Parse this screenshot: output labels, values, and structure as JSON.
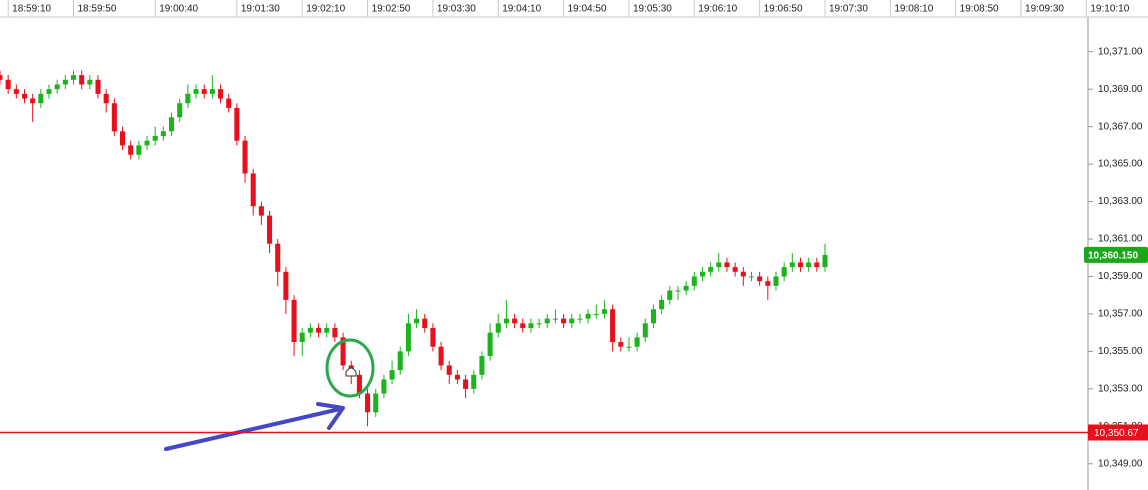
{
  "chart_data": {
    "type": "candlestick",
    "x": [
      "18:59:05",
      "18:59:10",
      "18:59:15",
      "18:59:20",
      "18:59:25",
      "18:59:30",
      "18:59:35",
      "18:59:40",
      "18:59:45",
      "18:59:50",
      "18:59:55",
      "19:00:00",
      "19:00:05",
      "19:00:10",
      "19:00:15",
      "19:00:20",
      "19:00:25",
      "19:00:30",
      "19:00:35",
      "19:00:40",
      "19:00:45",
      "19:00:50",
      "19:00:55",
      "19:01:00",
      "19:01:05",
      "19:01:10",
      "19:01:15",
      "19:01:20",
      "19:01:25",
      "19:01:30",
      "19:01:35",
      "19:01:40",
      "19:01:45",
      "19:01:50",
      "19:01:55",
      "19:02:00",
      "19:02:05",
      "19:02:10",
      "19:02:15",
      "19:02:20",
      "19:02:25",
      "19:02:30",
      "19:02:35",
      "19:02:40",
      "19:02:45",
      "19:02:50",
      "19:02:55",
      "19:03:00",
      "19:03:05",
      "19:03:10",
      "19:03:15",
      "19:03:20",
      "19:03:25",
      "19:03:30",
      "19:03:35",
      "19:03:40",
      "19:03:45",
      "19:03:50",
      "19:03:55",
      "19:04:00",
      "19:04:05",
      "19:04:10",
      "19:04:15",
      "19:04:20",
      "19:04:25",
      "19:04:30",
      "19:04:35",
      "19:04:40",
      "19:04:45",
      "19:04:50",
      "19:04:55",
      "19:05:00",
      "19:05:05",
      "19:05:10",
      "19:05:15",
      "19:05:20",
      "19:05:25",
      "19:05:30",
      "19:05:35",
      "19:05:40",
      "19:05:45",
      "19:05:50",
      "19:05:55",
      "19:06:00",
      "19:06:05",
      "19:06:10",
      "19:06:15",
      "19:06:20",
      "19:06:25",
      "19:06:30",
      "19:06:35",
      "19:06:40",
      "19:06:45",
      "19:06:50",
      "19:06:55",
      "19:07:00",
      "19:07:05",
      "19:07:10",
      "19:07:15",
      "19:07:20",
      "19:07:25",
      "19:07:30"
    ],
    "open": [
      10369.75,
      10369.5,
      10369,
      10368.75,
      10368.5,
      10368.25,
      10368.75,
      10369,
      10369.25,
      10369.5,
      10369.75,
      10369.25,
      10369.5,
      10368.75,
      10368.25,
      10366.75,
      10366,
      10365.5,
      10366,
      10366.25,
      10366.5,
      10366.75,
      10367.5,
      10368.25,
      10368.75,
      10369,
      10368.75,
      10369,
      10368.5,
      10368,
      10366.25,
      10364.5,
      10362.75,
      10362.25,
      10360.75,
      10359.25,
      10357.75,
      10355.5,
      10356,
      10356.25,
      10356,
      10356.25,
      10355.75,
      10354.25,
      10353.75,
      10352.75,
      10351.75,
      10352.75,
      10353.5,
      10354,
      10355,
      10356.5,
      10356.75,
      10356.25,
      10355.25,
      10354.25,
      10353.75,
      10353.5,
      10353,
      10353.75,
      10354.75,
      10356,
      10356.5,
      10356.75,
      10356.5,
      10356.25,
      10356.5,
      10356.5,
      10356.75,
      10356.75,
      10356.5,
      10356.75,
      10356.75,
      10357,
      10357,
      10357.25,
      10355.5,
      10355.25,
      10355.25,
      10355.75,
      10356.5,
      10357.25,
      10357.75,
      10358.25,
      10358.25,
      10358.5,
      10359,
      10359.25,
      10359.5,
      10359.75,
      10359.5,
      10359.25,
      10359,
      10359,
      10358.75,
      10358.5,
      10359,
      10359.5,
      10359.75,
      10359.5,
      10359.75,
      10359.5
    ],
    "high": [
      10370,
      10369.75,
      10369.25,
      10369,
      10368.75,
      10369,
      10369.25,
      10369.5,
      10369.75,
      10370,
      10370,
      10369.75,
      10369.75,
      10369,
      10368.5,
      10367,
      10366.25,
      10366.25,
      10366.5,
      10367,
      10367,
      10367.75,
      10368.5,
      10369.25,
      10369.25,
      10369.25,
      10369.75,
      10369.25,
      10368.75,
      10368.25,
      10366.5,
      10364.75,
      10363,
      10362.5,
      10361,
      10359.5,
      10358,
      10356.25,
      10356.5,
      10356.5,
      10356.5,
      10356.5,
      10356,
      10354.5,
      10354,
      10353,
      10353,
      10353.75,
      10354.5,
      10355.25,
      10357,
      10357.25,
      10357,
      10356.5,
      10355.5,
      10354.5,
      10354,
      10353.75,
      10354,
      10355,
      10356.5,
      10357,
      10357.75,
      10357,
      10356.75,
      10356.75,
      10356.75,
      10357,
      10357.25,
      10357,
      10357,
      10357,
      10357.25,
      10357.5,
      10357.75,
      10357.5,
      10355.75,
      10355.75,
      10356,
      10356.75,
      10357.5,
      10358,
      10358.5,
      10358.5,
      10358.75,
      10359.25,
      10359.5,
      10359.75,
      10360.25,
      10360,
      10359.75,
      10359.5,
      10359.25,
      10359.25,
      10359,
      10359.25,
      10359.75,
      10360.25,
      10360,
      10360,
      10360,
      10360.75
    ],
    "low": [
      10369.25,
      10368.75,
      10368.5,
      10368.25,
      10367.25,
      10368,
      10368.5,
      10368.75,
      10369,
      10369.25,
      10369,
      10369,
      10368.5,
      10367.75,
      10366.5,
      10365.75,
      10365.25,
      10365.25,
      10365.75,
      10366,
      10366.25,
      10366.5,
      10367.25,
      10368,
      10368.5,
      10368.5,
      10368.5,
      10368.25,
      10367.75,
      10366,
      10364,
      10362.25,
      10361.75,
      10360.25,
      10358.5,
      10357,
      10354.75,
      10354.75,
      10355.75,
      10355.75,
      10355.75,
      10355.5,
      10354,
      10353.25,
      10352.5,
      10351,
      10351.5,
      10352.5,
      10353.25,
      10353.75,
      10354.75,
      10356.25,
      10356,
      10355,
      10354,
      10353.25,
      10353.25,
      10352.5,
      10352.75,
      10353.5,
      10354.5,
      10355.75,
      10356.25,
      10356.25,
      10356,
      10356,
      10356.25,
      10356.25,
      10356.5,
      10356.25,
      10356.25,
      10356.5,
      10356.5,
      10356.75,
      10356.75,
      10355,
      10355,
      10355,
      10355,
      10355.5,
      10356.25,
      10357,
      10357.5,
      10357.75,
      10358,
      10358.25,
      10358.75,
      10359,
      10359.25,
      10359.25,
      10359,
      10358.5,
      10358.75,
      10358.5,
      10357.75,
      10358.25,
      10358.75,
      10359.25,
      10359.25,
      10359.25,
      10359.25,
      10359.25
    ],
    "close": [
      10369.5,
      10369,
      10368.75,
      10368.5,
      10368.25,
      10368.75,
      10369,
      10369.25,
      10369.5,
      10369.75,
      10369.25,
      10369.5,
      10368.75,
      10368.25,
      10366.75,
      10366,
      10365.5,
      10366,
      10366.25,
      10366.5,
      10366.75,
      10367.5,
      10368.25,
      10368.75,
      10369,
      10368.75,
      10369,
      10368.5,
      10368,
      10366.25,
      10364.5,
      10362.75,
      10362.25,
      10360.75,
      10359.25,
      10357.75,
      10355.5,
      10356,
      10356.25,
      10356,
      10356.25,
      10355.75,
      10354.25,
      10353.75,
      10352.75,
      10351.75,
      10352.75,
      10353.5,
      10354,
      10355,
      10356.5,
      10356.75,
      10356.25,
      10355.25,
      10354.25,
      10353.75,
      10353.5,
      10353,
      10353.75,
      10354.75,
      10356,
      10356.5,
      10356.75,
      10356.5,
      10356.25,
      10356.5,
      10356.5,
      10356.75,
      10356.75,
      10356.5,
      10356.75,
      10356.75,
      10357,
      10357,
      10357.25,
      10355.5,
      10355.25,
      10355.25,
      10355.75,
      10356.5,
      10357.25,
      10357.75,
      10358.25,
      10358.25,
      10358.5,
      10359,
      10359.25,
      10359.5,
      10359.75,
      10359.5,
      10359.25,
      10359,
      10359,
      10358.75,
      10358.5,
      10359,
      10359.5,
      10359.75,
      10359.5,
      10359.75,
      10359.5,
      10360.15
    ],
    "up_color": "#1db31d",
    "down_color": "#e8101c",
    "xlim": [
      "18:59:05",
      "19:10:11"
    ],
    "xticks": [
      "18:59:10",
      "18:59:50",
      "19:00:40",
      "19:01:30",
      "19:02:10",
      "19:02:50",
      "19:03:30",
      "19:04:10",
      "19:04:50",
      "19:05:30",
      "19:06:10",
      "19:06:50",
      "19:07:30",
      "19:08:10",
      "19:08:50",
      "19:09:30",
      "19:10:10"
    ],
    "ylim": [
      10347.6,
      10372.8
    ],
    "yticks": [
      {
        "value": 10349,
        "label": "10,349.00"
      },
      {
        "value": 10351,
        "label": "10,351.00"
      },
      {
        "value": 10353,
        "label": "10,353.00"
      },
      {
        "value": 10355,
        "label": "10,355.00"
      },
      {
        "value": 10357,
        "label": "10,357.00"
      },
      {
        "value": 10359,
        "label": "10,359.00"
      },
      {
        "value": 10361,
        "label": "10,361.00"
      },
      {
        "value": 10363,
        "label": "10,363.00"
      },
      {
        "value": 10365,
        "label": "10,365.00"
      },
      {
        "value": 10367,
        "label": "10,367.00"
      },
      {
        "value": 10369,
        "label": "10,369.00"
      },
      {
        "value": 10371,
        "label": "10,371.00"
      }
    ],
    "level_line": {
      "value": 10350.67,
      "label": "10,350.67",
      "color": "#e8101c"
    },
    "last_price": {
      "value": 10360.15,
      "label": "10,360.150",
      "color": "#1aa81a"
    }
  }
}
